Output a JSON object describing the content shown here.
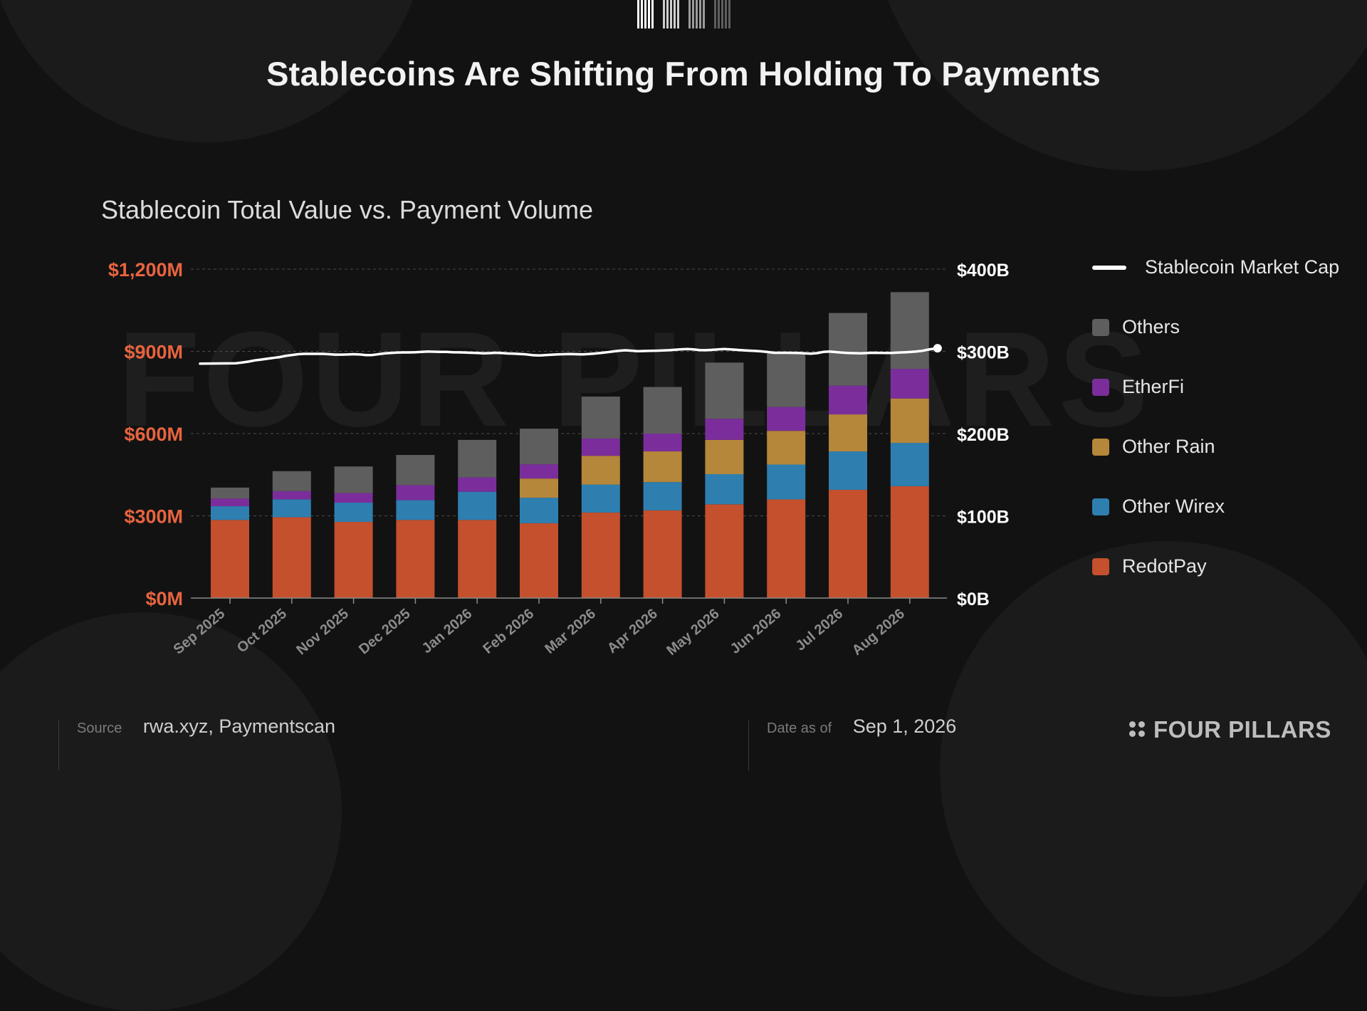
{
  "header": {
    "title": "Stablecoins Are Shifting From Holding To Payments"
  },
  "watermark": "FOUR PILLARS",
  "chart_data": {
    "type": "bar",
    "title": "Stablecoin Total Value vs. Payment Volume",
    "categories": [
      "Sep 2025",
      "Oct 2025",
      "Nov 2025",
      "Dec 2025",
      "Jan 2026",
      "Feb 2026",
      "Mar 2026",
      "Apr 2026",
      "May 2026",
      "Jun 2026",
      "Jul 2026",
      "Aug 2026"
    ],
    "stacked": true,
    "ylim": [
      0,
      1200
    ],
    "y2lim": [
      0,
      400
    ],
    "yticks": [
      {
        "value": 0,
        "label": "$0M"
      },
      {
        "value": 300,
        "label": "$300M"
      },
      {
        "value": 600,
        "label": "$600M"
      },
      {
        "value": 900,
        "label": "$900M"
      },
      {
        "value": 1200,
        "label": "$1,200M"
      }
    ],
    "y2ticks": [
      {
        "value": 0,
        "label": "$0B"
      },
      {
        "value": 100,
        "label": "$100B"
      },
      {
        "value": 200,
        "label": "$200B"
      },
      {
        "value": 300,
        "label": "$300B"
      },
      {
        "value": 400,
        "label": "$400B"
      }
    ],
    "series": [
      {
        "name": "RedotPay",
        "color": "#c4502d",
        "values": [
          285,
          295,
          278,
          285,
          285,
          273,
          312,
          320,
          342,
          360,
          395,
          408
        ]
      },
      {
        "name": "Other Wirex",
        "color": "#2e7fb0",
        "values": [
          50,
          65,
          70,
          72,
          103,
          93,
          102,
          103,
          110,
          127,
          140,
          158
        ]
      },
      {
        "name": "Other Rain",
        "color": "#b5873a",
        "values": [
          0,
          0,
          0,
          0,
          0,
          70,
          105,
          112,
          125,
          123,
          135,
          162
        ]
      },
      {
        "name": "EtherFi",
        "color": "#7b2e9b",
        "values": [
          28,
          30,
          35,
          55,
          52,
          52,
          63,
          65,
          77,
          87,
          105,
          108
        ]
      },
      {
        "name": "Others",
        "color": "#5e5e5e",
        "values": [
          40,
          73,
          97,
          110,
          137,
          130,
          153,
          170,
          205,
          200,
          265,
          280
        ]
      }
    ],
    "line_series": {
      "name": "Stablecoin Market Cap",
      "color": "#ffffff",
      "axis": "right",
      "x": [
        0,
        0.1,
        0.2,
        0.3,
        0.4,
        0.5,
        0.6,
        0.7,
        0.8,
        0.9,
        1.0,
        1.1,
        1.2,
        1.3,
        1.4,
        1.5,
        1.6,
        1.7,
        1.8,
        1.9,
        2.0,
        2.1,
        2.2,
        2.3,
        2.4,
        2.5,
        2.6,
        2.7,
        2.8,
        2.9,
        3.0,
        3.1,
        3.2,
        3.3,
        3.4,
        3.5,
        3.6,
        3.7,
        3.8,
        3.9,
        4.0,
        4.1,
        4.2,
        4.3,
        4.4,
        4.5,
        4.6,
        4.7,
        4.8,
        4.9,
        5.0,
        5.1,
        5.2,
        5.3,
        5.4,
        5.5,
        5.6,
        5.7,
        5.8,
        5.9,
        6.0,
        6.1,
        6.2,
        6.3,
        6.4,
        6.5,
        6.6,
        6.7,
        6.8,
        6.9,
        7.0,
        7.1,
        7.2,
        7.3,
        7.4,
        7.5,
        7.6,
        7.7,
        7.8,
        7.9,
        8.0,
        8.1,
        8.2,
        8.3,
        8.4,
        8.5,
        8.6,
        8.7,
        8.8,
        8.9,
        9.0,
        9.1,
        9.2,
        9.3,
        9.4,
        9.5,
        9.6,
        9.7,
        9.8,
        9.9,
        10.0,
        10.1,
        10.2,
        10.3,
        10.4,
        10.5,
        10.6,
        10.7,
        10.8,
        10.9,
        11.0,
        11.1,
        11.2,
        11.3,
        11.4,
        11.45
      ],
      "values": [
        285,
        285.5,
        286.5,
        287.5,
        289,
        290,
        291,
        292,
        293,
        294.5,
        295.5,
        296.5,
        297,
        297,
        297,
        297,
        296.5,
        296,
        296,
        296.2,
        296.5,
        296.2,
        295.5,
        295.5,
        296.5,
        297.5,
        298,
        298.4,
        298.7,
        298.7,
        299,
        299.4,
        299.8,
        299.6,
        299.4,
        299.3,
        299,
        298.8,
        298.6,
        298.3,
        298,
        297.6,
        297.8,
        298.3,
        297.9,
        297.4,
        297.2,
        296.8,
        296.3,
        295.3,
        295,
        295.4,
        295.9,
        296.3,
        296.5,
        296.7,
        296.5,
        296.3,
        296.7,
        297.3,
        298,
        298.9,
        299.9,
        300.8,
        301.3,
        300.8,
        300.3,
        300.4,
        300.6,
        300.8,
        301,
        301.4,
        301.9,
        302.5,
        302.9,
        302.3,
        301.6,
        301.4,
        301.8,
        302.4,
        302.9,
        302.4,
        301.8,
        301.3,
        300.9,
        300.5,
        300,
        299.2,
        298.3,
        298.3,
        298.3,
        298.2,
        298,
        297.6,
        297.2,
        297.8,
        299.3,
        299.7,
        299.1,
        298.5,
        298,
        297.8,
        297.7,
        297.9,
        298.3,
        298.2,
        298,
        298,
        298.4,
        298.8,
        299.2,
        299.8,
        300.6,
        302.2,
        303.4,
        303.8
      ]
    },
    "grid": true,
    "legend_position": "right"
  },
  "legend": {
    "items": [
      {
        "label": "Stablecoin Market Cap",
        "type": "line",
        "color": "#ffffff"
      },
      {
        "label": "Others",
        "type": "swatch",
        "color": "#5e5e5e"
      },
      {
        "label": "EtherFi",
        "type": "swatch",
        "color": "#7b2e9b"
      },
      {
        "label": "Other Rain",
        "type": "swatch",
        "color": "#b5873a"
      },
      {
        "label": "Other Wirex",
        "type": "swatch",
        "color": "#2e7fb0"
      },
      {
        "label": "RedotPay",
        "type": "swatch",
        "color": "#c4502d"
      }
    ]
  },
  "footer": {
    "source_label": "Source",
    "source_value": "rwa.xyz, Paymentscan",
    "date_label": "Date as of",
    "date_value": "Sep 1, 2026",
    "brand": "FOUR PILLARS"
  },
  "colors": {
    "background": "#121212",
    "left_axis": "#e8643f",
    "right_axis": "#ffffff"
  }
}
